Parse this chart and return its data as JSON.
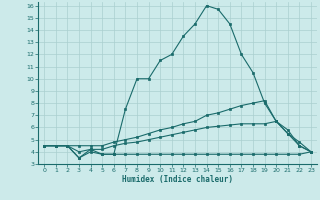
{
  "background_color": "#cceaea",
  "grid_color": "#aacfcf",
  "line_color": "#1a6b6b",
  "xlabel": "Humidex (Indice chaleur)",
  "xlim": [
    -0.5,
    23.5
  ],
  "ylim": [
    3,
    16.3
  ],
  "yticks": [
    3,
    4,
    5,
    6,
    7,
    8,
    9,
    10,
    11,
    12,
    13,
    14,
    15,
    16
  ],
  "xticks": [
    0,
    1,
    2,
    3,
    4,
    5,
    6,
    7,
    8,
    9,
    10,
    11,
    12,
    13,
    14,
    15,
    16,
    17,
    18,
    19,
    20,
    21,
    22,
    23
  ],
  "line1_x": [
    0,
    1,
    2,
    3,
    4,
    5,
    6,
    7,
    8,
    9,
    10,
    11,
    12,
    13,
    14,
    15,
    16,
    17,
    18,
    19,
    20,
    21,
    22,
    23
  ],
  "line1_y": [
    4.5,
    4.5,
    4.5,
    3.5,
    4.2,
    3.8,
    3.8,
    7.5,
    10.0,
    10.0,
    11.5,
    12.0,
    13.5,
    14.5,
    16.0,
    15.7,
    14.5,
    12.0,
    10.5,
    8.0,
    6.5,
    5.5,
    4.5,
    4.0
  ],
  "line2_x": [
    0,
    1,
    2,
    3,
    4,
    5,
    6,
    7,
    8,
    9,
    10,
    11,
    12,
    13,
    14,
    15,
    16,
    17,
    18,
    19,
    20,
    21,
    22,
    23
  ],
  "line2_y": [
    4.5,
    4.5,
    4.5,
    3.5,
    4.0,
    3.8,
    3.8,
    3.8,
    3.8,
    3.8,
    3.8,
    3.8,
    3.8,
    3.8,
    3.8,
    3.8,
    3.8,
    3.8,
    3.8,
    3.8,
    3.8,
    3.8,
    3.8,
    4.0
  ],
  "line3_x": [
    0,
    1,
    2,
    3,
    4,
    5,
    6,
    7,
    8,
    9,
    10,
    11,
    12,
    13,
    14,
    15,
    16,
    17,
    18,
    19,
    20,
    21,
    22,
    23
  ],
  "line3_y": [
    4.5,
    4.5,
    4.5,
    4.5,
    4.5,
    4.5,
    4.8,
    5.0,
    5.2,
    5.5,
    5.8,
    6.0,
    6.3,
    6.5,
    7.0,
    7.2,
    7.5,
    7.8,
    8.0,
    8.2,
    6.5,
    5.5,
    4.8,
    4.0
  ],
  "line4_x": [
    0,
    1,
    2,
    3,
    4,
    5,
    6,
    7,
    8,
    9,
    10,
    11,
    12,
    13,
    14,
    15,
    16,
    17,
    18,
    19,
    20,
    21,
    22,
    23
  ],
  "line4_y": [
    4.5,
    4.5,
    4.5,
    4.0,
    4.2,
    4.2,
    4.5,
    4.7,
    4.8,
    5.0,
    5.2,
    5.4,
    5.6,
    5.8,
    6.0,
    6.1,
    6.2,
    6.3,
    6.3,
    6.3,
    6.5,
    5.8,
    4.5,
    4.0
  ]
}
